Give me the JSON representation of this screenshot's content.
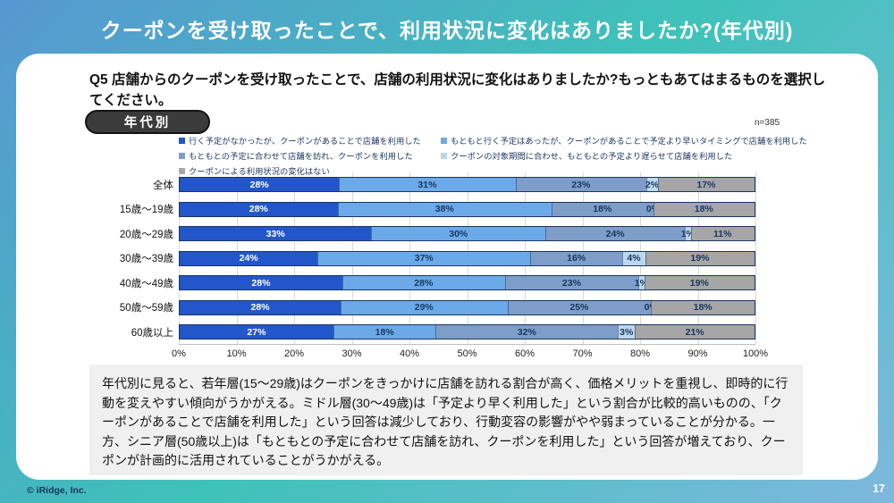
{
  "header": {
    "title": "クーポンを受け取ったことで、利用状況に変化はありましたか?(年代別)"
  },
  "question": {
    "text": "Q5 店舗からのクーポンを受け取ったことで、店舗の利用状況に変化はありましたか?もっともあてはまるものを選択してください。"
  },
  "badge": {
    "label": "年代別"
  },
  "sample": {
    "label": "n=385"
  },
  "chart_data": {
    "type": "bar",
    "stacked": true,
    "orientation": "horizontal",
    "title": "",
    "xlabel": "",
    "ylabel": "",
    "xlim": [
      0,
      100
    ],
    "value_suffix": "%",
    "grid": true,
    "legend_position": "top",
    "x_ticks": [
      "0%",
      "10%",
      "20%",
      "30%",
      "40%",
      "50%",
      "60%",
      "70%",
      "80%",
      "90%",
      "100%"
    ],
    "categories": [
      "全体",
      "15歳〜19歳",
      "20歳〜29歳",
      "30歳〜39歳",
      "40歳〜49歳",
      "50歳〜59歳",
      "60歳以上"
    ],
    "series": [
      {
        "name": "行く予定がなかったが、クーポンがあることで店舗を利用した",
        "color": "#2456CB",
        "label_color": "#ffffff",
        "values": [
          28,
          28,
          33,
          24,
          28,
          28,
          27
        ]
      },
      {
        "name": "もともと行く予定はあったが、クーポンがあることで予定より早いタイミングで店舗を利用した",
        "color": "#6CA9E8",
        "label_color": "#17375E",
        "values": [
          31,
          38,
          30,
          37,
          28,
          29,
          18
        ]
      },
      {
        "name": "もともとの予定に合わせて店舗を訪れ、クーポンを利用した",
        "color": "#7E9DC8",
        "label_color": "#17375E",
        "values": [
          23,
          18,
          24,
          16,
          23,
          25,
          32
        ]
      },
      {
        "name": "クーポンの対象期間に合わせ、もともとの予定より遅らせて店舗を利用した",
        "color": "#BDD7EE",
        "label_color": "#17375E",
        "values": [
          2,
          0,
          1,
          4,
          1,
          0,
          3
        ]
      },
      {
        "name": "クーポンによる利用状況の変化はない",
        "color": "#A6A6A6",
        "label_color": "#17375E",
        "values": [
          17,
          18,
          11,
          19,
          19,
          18,
          21
        ]
      }
    ]
  },
  "summary": {
    "text": "年代別に見ると、若年層(15〜29歳)はクーポンをきっかけに店舗を訪れる割合が高く、価格メリットを重視し、即時的に行動を変えやすい傾向がうかがえる。ミドル層(30〜49歳)は「予定より早く利用した」という割合が比較的高いものの、「クーポンがあることで店舗を利用した」という回答は減少しており、行動変容の影響がやや弱まっていることが分かる。一方、シニア層(50歳以上)は「もともとの予定に合わせて店舗を訪れ、クーポンを利用した」という回答が増えており、クーポンが計画的に活用されていることがうかがえる。"
  },
  "footer": {
    "copyright": "© iRidge, Inc.",
    "page_number": "17"
  }
}
